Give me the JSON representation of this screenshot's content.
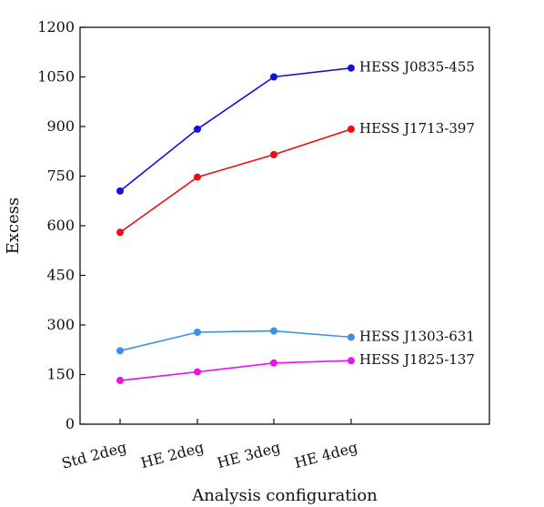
{
  "chart_data": {
    "type": "line",
    "title": "",
    "xlabel": "Analysis configuration",
    "ylabel": "Excess",
    "categories": [
      "Std 2deg",
      "HE 2deg",
      "HE 3deg",
      "HE 4deg"
    ],
    "ylim": [
      0,
      1200
    ],
    "yticks": [
      0,
      150,
      300,
      450,
      600,
      750,
      900,
      1050,
      1200
    ],
    "grid": false,
    "legend": "inline labels at right end of each series",
    "series": [
      {
        "name": "HESS J0835-455",
        "color": "#1010e0",
        "values": [
          705,
          892,
          1050,
          1077
        ]
      },
      {
        "name": "HESS J1713-397",
        "color": "#e81010",
        "values": [
          580,
          747,
          815,
          892
        ]
      },
      {
        "name": "HESS J1303-631",
        "color": "#3a90e8",
        "values": [
          222,
          278,
          282,
          263
        ]
      },
      {
        "name": "HESS J1825-137",
        "color": "#ee10ee",
        "values": [
          132,
          158,
          185,
          192
        ]
      }
    ]
  }
}
